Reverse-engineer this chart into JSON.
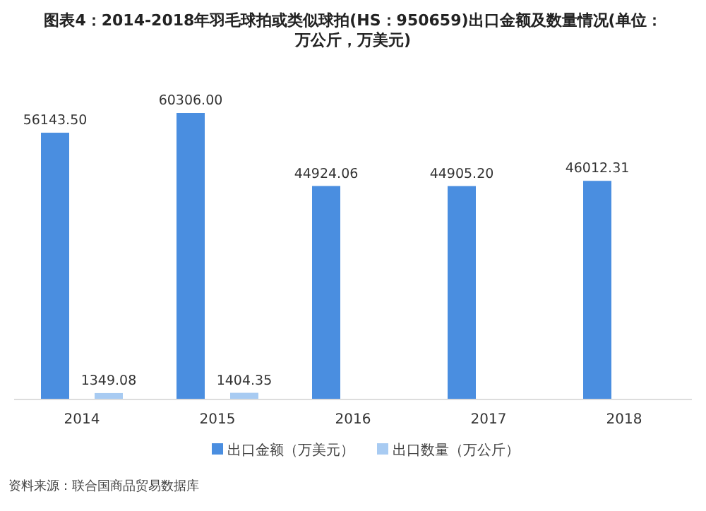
{
  "chart_data": {
    "type": "bar",
    "title": "图表4：2014-2018年羽毛球拍或类似球拍(HS：950659)出口金额及数量情况(单位：万公斤，万美元)",
    "categories": [
      "2014",
      "2015",
      "2016",
      "2017",
      "2018"
    ],
    "series": [
      {
        "name": "出口金额（万美元）",
        "color": "#4a8ee0",
        "values": [
          56143.5,
          60306.0,
          44924.06,
          44905.2,
          46012.31
        ],
        "value_labels": [
          "56143.50",
          "60306.00",
          "44924.06",
          "44905.20",
          "46012.31"
        ]
      },
      {
        "name": "出口数量（万公斤）",
        "color": "#a8cbf2",
        "values": [
          1349.08,
          1404.35,
          null,
          null,
          null
        ],
        "value_labels": [
          "1349.08",
          "1404.35",
          null,
          null,
          null
        ]
      }
    ],
    "legend": "bottom",
    "annotations": [
      "资料来源：联合国商品贸易数据库"
    ]
  }
}
